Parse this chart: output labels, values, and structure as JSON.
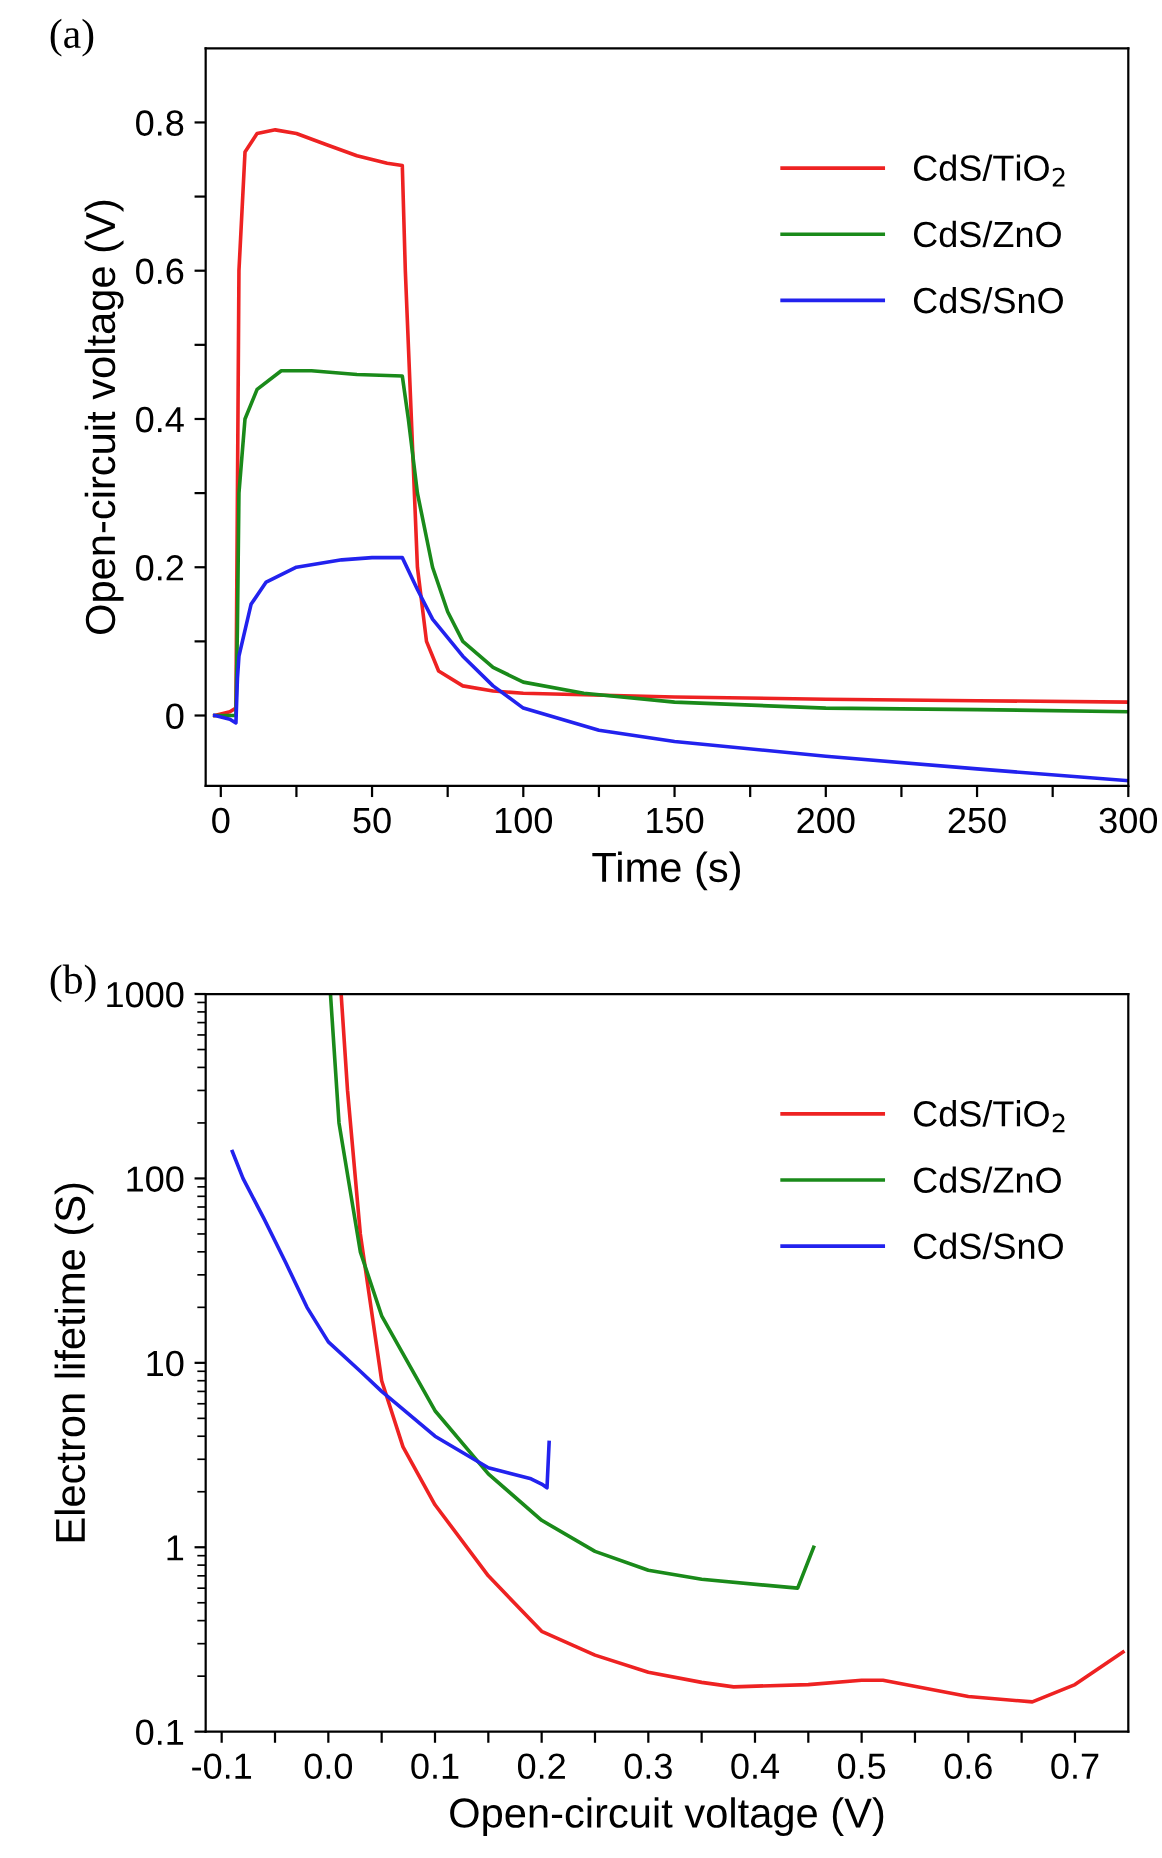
{
  "chart_data": [
    {
      "type": "line",
      "xlabel": "Time (s)",
      "ylabel": "Open-circuit voltage (V)",
      "annotations": [
        "(a)"
      ],
      "legend": "top right",
      "grid": false,
      "xlim": [
        -5,
        300
      ],
      "ylim": [
        -0.095,
        0.9
      ],
      "xticks": [
        0,
        {
          "value": 25,
          "label": null
        },
        50,
        {
          "value": 75,
          "label": null
        },
        100,
        {
          "value": 125,
          "label": null
        },
        150,
        {
          "value": 175,
          "label": null
        },
        200,
        {
          "value": 225,
          "label": null
        },
        250,
        {
          "value": 275,
          "label": null
        },
        300
      ],
      "yticks": [
        {
          "value": 0,
          "label": "0"
        },
        {
          "value": 0.1,
          "label": null
        },
        0.2,
        {
          "value": 0.3,
          "label": null
        },
        0.4,
        {
          "value": 0.5,
          "label": null
        },
        0.6,
        {
          "value": 0.7,
          "label": null
        },
        0.8
      ],
      "series": [
        {
          "name": "CdS/TiO$_{2}$",
          "color": "#ee2222",
          "x": [
            -2,
            3,
            5,
            5.5,
            6,
            8,
            12,
            18,
            25,
            35,
            45,
            55,
            60,
            61,
            63,
            65,
            68,
            72,
            80,
            90,
            100,
            150,
            200,
            250,
            300
          ],
          "values": [
            0,
            0.005,
            0.01,
            0.3,
            0.6,
            0.76,
            0.785,
            0.79,
            0.785,
            0.77,
            0.755,
            0.745,
            0.742,
            0.6,
            0.4,
            0.2,
            0.1,
            0.06,
            0.04,
            0.033,
            0.03,
            0.025,
            0.022,
            0.02,
            0.018
          ]
        },
        {
          "name": "CdS/ZnO",
          "color": "#1a8a1a",
          "x": [
            -2,
            5,
            5.5,
            6,
            8,
            12,
            20,
            30,
            45,
            60,
            62,
            65,
            70,
            75,
            80,
            90,
            100,
            120,
            150,
            200,
            250,
            300
          ],
          "values": [
            0,
            0,
            0.12,
            0.3,
            0.4,
            0.44,
            0.465,
            0.465,
            0.46,
            0.458,
            0.4,
            0.3,
            0.2,
            0.14,
            0.1,
            0.065,
            0.045,
            0.03,
            0.018,
            0.01,
            0.008,
            0.005
          ]
        },
        {
          "name": "CdS/SnO",
          "color": "#2222ee",
          "x": [
            -2,
            3,
            5,
            5.5,
            6,
            10,
            15,
            25,
            40,
            50,
            60,
            65,
            70,
            80,
            90,
            100,
            125,
            150,
            200,
            250,
            300
          ],
          "values": [
            0,
            -0.005,
            -0.01,
            0.05,
            0.08,
            0.15,
            0.18,
            0.2,
            0.21,
            0.213,
            0.213,
            0.17,
            0.13,
            0.08,
            0.04,
            0.01,
            -0.02,
            -0.035,
            -0.055,
            -0.072,
            -0.088
          ]
        }
      ]
    },
    {
      "type": "line",
      "xlabel": "Open-circuit voltage (V)",
      "ylabel": "Electron lifetime (S)",
      "annotations": [
        "(b)"
      ],
      "legend": "top right",
      "grid": false,
      "log": "y",
      "xlim": [
        -0.115,
        0.75
      ],
      "ylim": [
        0.1,
        1000
      ],
      "xticks": [
        -0.1,
        {
          "value": -0.05,
          "label": null
        },
        {
          "value": 0,
          "label": "0.0"
        },
        {
          "value": 0.05,
          "label": null
        },
        0.1,
        {
          "value": 0.15,
          "label": null
        },
        0.2,
        {
          "value": 0.25,
          "label": null
        },
        0.3,
        {
          "value": 0.35,
          "label": null
        },
        0.4,
        {
          "value": 0.45,
          "label": null
        },
        0.5,
        {
          "value": 0.55,
          "label": null
        },
        0.6,
        {
          "value": 0.65,
          "label": null
        },
        0.7
      ],
      "yticks": [
        0.1,
        1,
        10,
        100,
        1000
      ],
      "series": [
        {
          "name": "CdS/TiO$_{2}$",
          "color": "#ee2222",
          "x": [
            0.012,
            0.018,
            0.03,
            0.05,
            0.07,
            0.1,
            0.15,
            0.2,
            0.25,
            0.3,
            0.35,
            0.38,
            0.45,
            0.5,
            0.52,
            0.6,
            0.66,
            0.7,
            0.745
          ],
          "values": [
            1000,
            300,
            50,
            8,
            3.5,
            1.7,
            0.7,
            0.35,
            0.26,
            0.21,
            0.185,
            0.175,
            0.18,
            0.19,
            0.19,
            0.155,
            0.145,
            0.18,
            0.27
          ]
        },
        {
          "name": "CdS/ZnO",
          "color": "#1a8a1a",
          "x": [
            0.002,
            0.01,
            0.03,
            0.05,
            0.1,
            0.15,
            0.2,
            0.25,
            0.3,
            0.35,
            0.44,
            0.455
          ],
          "values": [
            1000,
            200,
            40,
            18,
            5.5,
            2.5,
            1.4,
            0.95,
            0.75,
            0.67,
            0.6,
            1.0
          ]
        },
        {
          "name": "CdS/SnO",
          "color": "#2222ee",
          "x": [
            -0.09,
            -0.08,
            -0.06,
            -0.04,
            -0.02,
            0,
            0.03,
            0.05,
            0.1,
            0.15,
            0.19,
            0.2,
            0.205,
            0.207
          ],
          "values": [
            140,
            100,
            60,
            35,
            20,
            13,
            9,
            7,
            4,
            2.7,
            2.35,
            2.2,
            2.1,
            3.7
          ]
        }
      ]
    }
  ]
}
